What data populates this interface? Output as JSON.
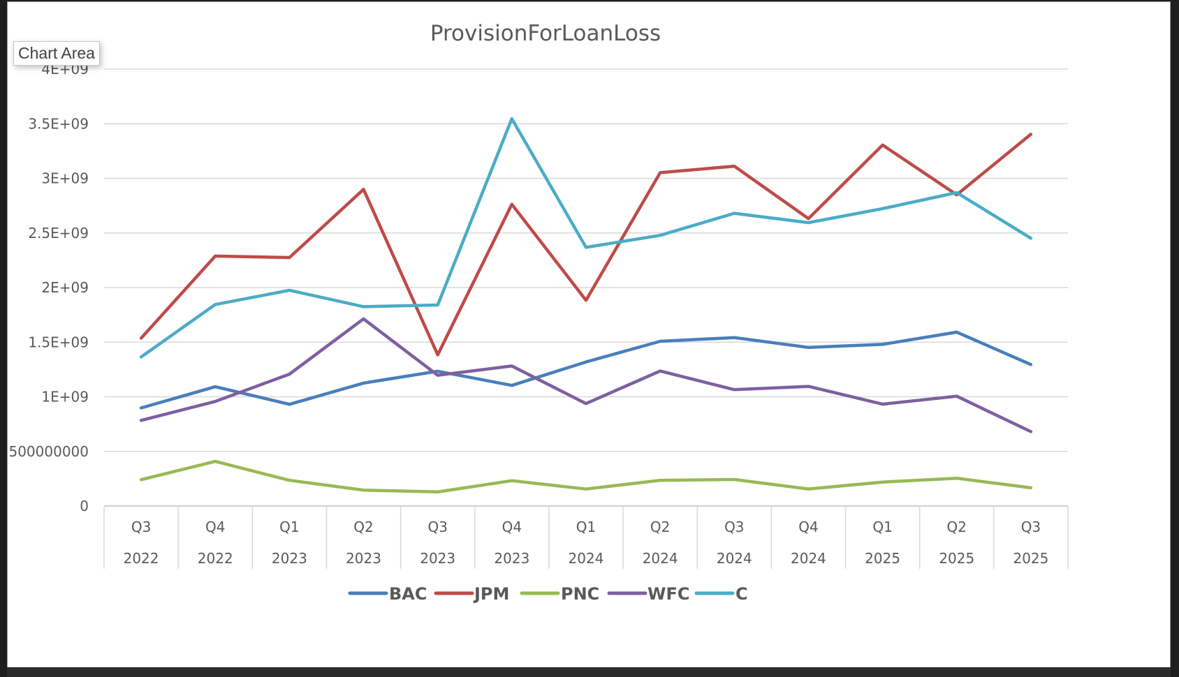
{
  "window": {
    "tooltip_label": "Chart Area"
  },
  "chart_data": {
    "type": "line",
    "title": "ProvisionForLoanLoss",
    "xlabel": "",
    "ylabel": "",
    "ylim": [
      0,
      4000000000
    ],
    "y_ticks": [
      0,
      500000000,
      1000000000,
      1500000000,
      2000000000,
      2500000000,
      3000000000,
      3500000000,
      4000000000
    ],
    "y_tick_labels": [
      "0",
      "500000000",
      "1E+09",
      "1.5E+09",
      "2E+09",
      "2.5E+09",
      "3E+09",
      "3.5E+09",
      "4E+09"
    ],
    "grid": true,
    "legend_position": "bottom",
    "categories": [
      {
        "quarter": "Q3",
        "year": "2022"
      },
      {
        "quarter": "Q4",
        "year": "2022"
      },
      {
        "quarter": "Q1",
        "year": "2023"
      },
      {
        "quarter": "Q2",
        "year": "2023"
      },
      {
        "quarter": "Q3",
        "year": "2023"
      },
      {
        "quarter": "Q4",
        "year": "2023"
      },
      {
        "quarter": "Q1",
        "year": "2024"
      },
      {
        "quarter": "Q2",
        "year": "2024"
      },
      {
        "quarter": "Q3",
        "year": "2024"
      },
      {
        "quarter": "Q4",
        "year": "2024"
      },
      {
        "quarter": "Q1",
        "year": "2025"
      },
      {
        "quarter": "Q2",
        "year": "2025"
      },
      {
        "quarter": "Q3",
        "year": "2025"
      }
    ],
    "series": [
      {
        "name": "BAC",
        "color": "#4a7ebb",
        "values": [
          898000000,
          1092000000,
          931000000,
          1125000000,
          1234000000,
          1104000000,
          1319000000,
          1508000000,
          1542000000,
          1452000000,
          1480000000,
          1592000000,
          1295000000
        ]
      },
      {
        "name": "JPM",
        "color": "#be4b48",
        "values": [
          1537000000,
          2288000000,
          2275000000,
          2899000000,
          1384000000,
          2762000000,
          1884000000,
          3052000000,
          3111000000,
          2631000000,
          3305000000,
          2849000000,
          3403000000
        ]
      },
      {
        "name": "PNC",
        "color": "#98b954",
        "values": [
          241000000,
          408000000,
          235000000,
          146000000,
          129000000,
          232000000,
          155000000,
          235000000,
          243000000,
          156000000,
          219000000,
          254000000,
          167000000
        ]
      },
      {
        "name": "WFC",
        "color": "#7d60a0",
        "values": [
          784000000,
          957000000,
          1207000000,
          1713000000,
          1197000000,
          1282000000,
          938000000,
          1236000000,
          1065000000,
          1095000000,
          932000000,
          1005000000,
          681000000
        ]
      },
      {
        "name": "C",
        "color": "#4bacc6",
        "values": [
          1365000000,
          1845000000,
          1975000000,
          1825000000,
          1840000000,
          3546000000,
          2368000000,
          2478000000,
          2680000000,
          2594000000,
          2723000000,
          2869000000,
          2452000000
        ]
      }
    ]
  }
}
